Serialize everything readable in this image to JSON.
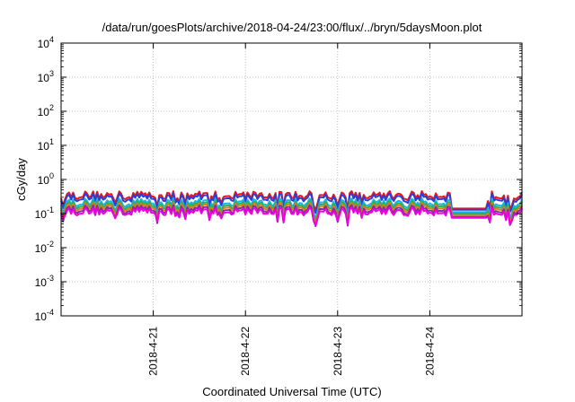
{
  "chart_data": {
    "type": "line",
    "title": "/data/run/goesPlots/archive/2018-04-24/23:00/flux/../bryn/5daysMoon.plot",
    "xlabel": "Coordinated Universal Time (UTC)",
    "ylabel": "cGy/day",
    "x_tick_labels": [
      "2018-4-21",
      "2018-4-22",
      "2018-4-23",
      "2018-4-24"
    ],
    "x_ticks_days": [
      1,
      2,
      3,
      4
    ],
    "xlim_days": [
      0,
      5
    ],
    "y_scale": "log",
    "ylim": [
      0.0001,
      10000
    ],
    "y_ticks": [
      {
        "base": "10",
        "exp": "-4"
      },
      {
        "base": "10",
        "exp": "-3"
      },
      {
        "base": "10",
        "exp": "-2"
      },
      {
        "base": "10",
        "exp": "-1"
      },
      {
        "base": "10",
        "exp": "0"
      },
      {
        "base": "10",
        "exp": "1"
      },
      {
        "base": "10",
        "exp": "2"
      },
      {
        "base": "10",
        "exp": "3"
      },
      {
        "base": "10",
        "exp": "4"
      }
    ],
    "grid": true,
    "series": [
      {
        "color": "#e8151b",
        "baseline": 0.36,
        "flat": 0.14,
        "dip": 0.55
      },
      {
        "color": "#2a3fd6",
        "baseline": 0.31,
        "flat": 0.13,
        "dip": 0.6
      },
      {
        "color": "#18b6e6",
        "baseline": 0.22,
        "flat": 0.11,
        "dip": 0.62
      },
      {
        "color": "#2bb24c",
        "baseline": 0.19,
        "flat": 0.1,
        "dip": 0.64
      },
      {
        "color": "#e07a1a",
        "baseline": 0.165,
        "flat": 0.09,
        "dip": 0.66
      },
      {
        "color": "#7a2fa5",
        "baseline": 0.14,
        "flat": 0.08,
        "dip": 0.68
      },
      {
        "color": "#f000e0",
        "baseline": 0.12,
        "flat": 0.075,
        "dip": 0.45
      }
    ],
    "flat_segment_days": [
      4.22,
      4.63
    ]
  }
}
